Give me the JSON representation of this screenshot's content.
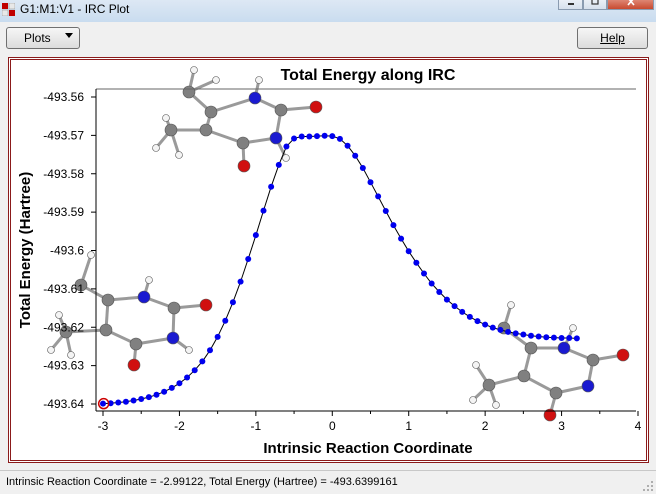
{
  "window": {
    "title": "G1:M1:V1 - IRC Plot",
    "controls": [
      "minimize-icon",
      "maximize-icon",
      "close-icon"
    ]
  },
  "toolbar": {
    "plots_label": "Plots",
    "help_label": "Help"
  },
  "status": {
    "text": "Intrinsic Reaction Coordinate = -2.99122, Total Energy (Hartree) = -493.6399161"
  },
  "colors": {
    "border": "#8b1a1a",
    "point": "#0000ee",
    "selected": "#cc0000",
    "curve": "#000000",
    "carbon": "#808080",
    "nitrogen": "#1a1ad0",
    "oxygen": "#d01010",
    "hydrogen": "#f4f4f4"
  },
  "chart_data": {
    "type": "scatter",
    "title": "Total Energy along IRC",
    "xlabel": "Intrinsic Reaction Coordinate",
    "ylabel": "Total Energy (Hartree)",
    "xlim": [
      -3,
      4
    ],
    "ylim": [
      -493.64,
      -493.555
    ],
    "x_ticks": [
      "-3",
      "-2",
      "-1",
      "0",
      "1",
      "2",
      "3",
      "4"
    ],
    "y_ticks": [
      "-493.56",
      "-493.57",
      "-493.58",
      "-493.59",
      "-493.6",
      "-493.61",
      "-493.62",
      "-493.63",
      "-493.64"
    ],
    "selected_point": {
      "x": -2.99122,
      "y": -493.6399161
    },
    "series": [
      {
        "values_x": [
          -3.0,
          -2.9,
          -2.8,
          -2.7,
          -2.6,
          -2.5,
          -2.4,
          -2.3,
          -2.2,
          -2.1,
          -2.0,
          -1.9,
          -1.8,
          -1.7,
          -1.6,
          -1.5,
          -1.4,
          -1.3,
          -1.2,
          -1.1,
          -1.0,
          -0.9,
          -0.8,
          -0.7,
          -0.6,
          -0.5,
          -0.4,
          -0.3,
          -0.2,
          -0.1,
          0.0,
          0.1,
          0.2,
          0.3,
          0.4,
          0.5,
          0.6,
          0.7,
          0.8,
          0.9,
          1.0,
          1.1,
          1.2,
          1.3,
          1.4,
          1.5,
          1.6,
          1.7,
          1.8,
          1.9,
          2.0,
          2.1,
          2.2,
          2.3,
          2.4,
          2.5,
          2.6,
          2.7,
          2.8,
          2.9,
          3.0,
          3.1,
          3.2
        ],
        "values_y": [
          -493.6399,
          -493.6398,
          -493.6396,
          -493.6394,
          -493.6391,
          -493.6387,
          -493.6382,
          -493.6376,
          -493.6368,
          -493.6358,
          -493.6346,
          -493.6331,
          -493.6312,
          -493.6289,
          -493.626,
          -493.6225,
          -493.6183,
          -493.6135,
          -493.6081,
          -493.6022,
          -493.596,
          -493.5896,
          -493.5834,
          -493.5777,
          -493.5729,
          -493.5708,
          -493.5703,
          -493.5703,
          -493.5702,
          -493.5701,
          -493.5702,
          -493.5709,
          -493.5727,
          -493.5753,
          -493.5785,
          -493.5822,
          -493.5859,
          -493.5897,
          -493.5934,
          -493.5969,
          -493.6002,
          -493.6032,
          -493.606,
          -493.6086,
          -493.6108,
          -493.6128,
          -493.6145,
          -493.616,
          -493.6173,
          -493.6184,
          -493.6193,
          -493.6201,
          -493.6207,
          -493.6212,
          -493.6216,
          -493.6219,
          -493.6222,
          -493.6224,
          -493.6226,
          -493.6227,
          -493.6228,
          -493.6228,
          -493.6229
        ]
      }
    ]
  }
}
